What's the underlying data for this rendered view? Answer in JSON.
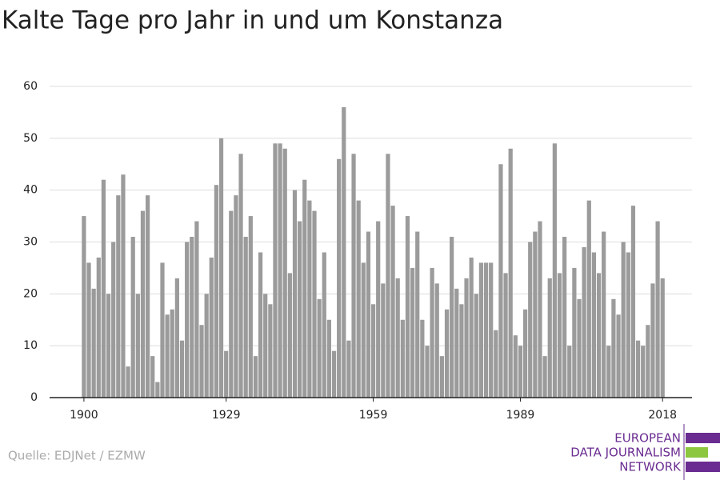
{
  "chart_data": {
    "type": "bar",
    "title": "Kalte Tage pro Jahr in und um Konstanza",
    "source": "Quelle: EDJNet / EZMW",
    "logo": [
      "EUROPEAN",
      "DATA JOURNALISM",
      "NETWORK"
    ],
    "x": [
      1900,
      1901,
      1902,
      1903,
      1904,
      1905,
      1906,
      1907,
      1908,
      1909,
      1910,
      1911,
      1912,
      1913,
      1914,
      1915,
      1916,
      1917,
      1918,
      1919,
      1920,
      1921,
      1922,
      1923,
      1924,
      1925,
      1926,
      1927,
      1928,
      1929,
      1930,
      1931,
      1932,
      1933,
      1934,
      1935,
      1936,
      1937,
      1938,
      1939,
      1940,
      1941,
      1942,
      1943,
      1944,
      1945,
      1946,
      1947,
      1948,
      1949,
      1950,
      1951,
      1952,
      1953,
      1954,
      1955,
      1956,
      1957,
      1958,
      1959,
      1960,
      1961,
      1962,
      1963,
      1964,
      1965,
      1966,
      1967,
      1968,
      1969,
      1970,
      1971,
      1972,
      1973,
      1974,
      1975,
      1976,
      1977,
      1978,
      1979,
      1980,
      1981,
      1982,
      1983,
      1984,
      1985,
      1986,
      1987,
      1988,
      1989,
      1990,
      1991,
      1992,
      1993,
      1994,
      1995,
      1996,
      1997,
      1998,
      1999,
      2000,
      2001,
      2002,
      2003,
      2004,
      2005,
      2006,
      2007,
      2008,
      2009,
      2010,
      2011,
      2012,
      2013,
      2014,
      2015,
      2016,
      2017,
      2018
    ],
    "values": [
      35,
      26,
      21,
      27,
      42,
      20,
      30,
      39,
      43,
      6,
      31,
      20,
      36,
      39,
      8,
      3,
      26,
      16,
      17,
      23,
      11,
      30,
      31,
      34,
      14,
      20,
      27,
      41,
      50,
      9,
      36,
      39,
      47,
      31,
      35,
      8,
      28,
      20,
      18,
      49,
      49,
      48,
      24,
      40,
      34,
      42,
      38,
      36,
      19,
      28,
      15,
      9,
      46,
      56,
      11,
      47,
      38,
      26,
      32,
      18,
      34,
      22,
      47,
      37,
      23,
      15,
      35,
      25,
      32,
      15,
      10,
      25,
      22,
      8,
      17,
      31,
      21,
      18,
      23,
      27,
      20,
      26,
      26,
      26,
      13,
      45,
      24,
      48,
      12,
      10,
      17,
      30,
      32,
      34,
      8,
      23,
      49,
      24,
      31,
      10,
      25,
      19,
      29,
      38,
      28,
      24,
      32,
      10,
      19,
      16,
      30,
      28,
      37,
      11,
      10,
      14,
      22,
      34,
      23
    ],
    "color": "#9b9b9b",
    "xlim": [
      1893,
      2024
    ],
    "xticks": [
      1900,
      1929,
      1959,
      1989,
      2018
    ],
    "ylim": [
      0,
      60
    ],
    "yticks": [
      0,
      10,
      20,
      30,
      40,
      50,
      60
    ],
    "grid": true
  }
}
